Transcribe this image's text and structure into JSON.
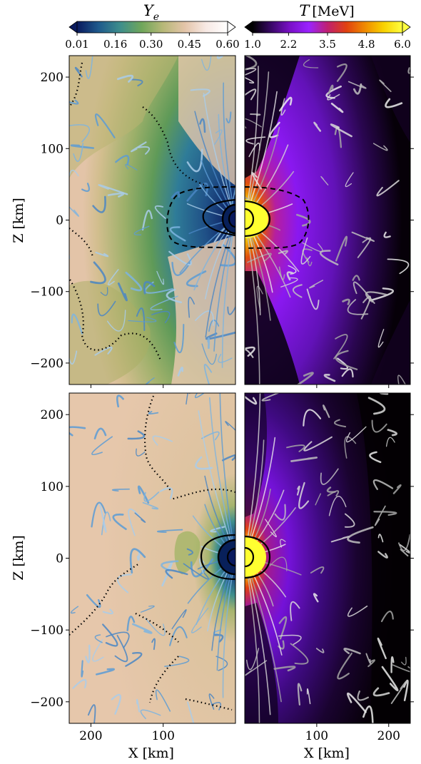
{
  "figure": {
    "colorbar_ye": {
      "label": "Y_e",
      "label_main": "Y",
      "label_sub": "e",
      "ticks": [
        "0.01",
        "0.16",
        "0.30",
        "0.45",
        "0.60"
      ],
      "tick_values": [
        0.01,
        0.16,
        0.3,
        0.45,
        0.6
      ],
      "range": [
        0.01,
        0.6
      ],
      "colormap_stops": [
        "#0a1a5e",
        "#1f5a8c",
        "#3e8e8c",
        "#6fa65a",
        "#b7b878",
        "#e3c4a8",
        "#f7e9e4",
        "#ffffff"
      ],
      "extend": "both"
    },
    "colorbar_t": {
      "label": "T [MeV]",
      "label_main": "T",
      "label_unit": "[MeV]",
      "ticks": [
        "1.0",
        "2.2",
        "3.5",
        "4.8",
        "6.0"
      ],
      "tick_values": [
        1.0,
        2.2,
        3.5,
        4.8,
        6.0
      ],
      "range": [
        1.0,
        6.0
      ],
      "colormap_stops": [
        "#000000",
        "#3a0868",
        "#7a10c8",
        "#9a22ff",
        "#c02070",
        "#e04010",
        "#f08a00",
        "#f8d200",
        "#ffff40"
      ],
      "extend": "both"
    },
    "panels": {
      "top_left": {
        "field": "Ye",
        "x_range": [
          230,
          0
        ],
        "y_range": [
          -230,
          230
        ]
      },
      "top_right": {
        "field": "T",
        "x_range": [
          0,
          230
        ],
        "y_range": [
          -230,
          230
        ]
      },
      "bottom_left": {
        "field": "Ye",
        "x_range": [
          230,
          0
        ],
        "y_range": [
          -230,
          230
        ]
      },
      "bottom_right": {
        "field": "T",
        "x_range": [
          0,
          230
        ],
        "y_range": [
          -230,
          230
        ]
      }
    },
    "y_axis": {
      "label": "Z [km]",
      "ticks": [
        "200",
        "100",
        "0",
        "−100",
        "−200"
      ],
      "tick_values": [
        200,
        100,
        0,
        -100,
        -200
      ]
    },
    "x_axis_left": {
      "label": "X [km]",
      "ticks": [
        "200",
        "100"
      ],
      "tick_values": [
        200,
        100
      ]
    },
    "x_axis_right": {
      "label": "X [km]",
      "ticks": [
        "100",
        "200"
      ],
      "tick_values": [
        100,
        200
      ]
    },
    "colors": {
      "ye_background": "#e3c4a8",
      "ye_mid": "#7aa24e",
      "ye_low": "#1f4f86",
      "streamline_blue": "#5b9bd5",
      "streamline_white": "#d9d9d9",
      "t_core": "#ffff30",
      "t_background": "#0c0010"
    }
  },
  "chart_data": [
    {
      "type": "heatmap",
      "title": "",
      "field": "Y_e",
      "xlabel": "X [km]",
      "ylabel": "Z [km]",
      "xlim": [
        230,
        0
      ],
      "ylim": [
        -230,
        230
      ],
      "clim": [
        0.01,
        0.6
      ],
      "colorbar_ticks": [
        0.01,
        0.16,
        0.3,
        0.45,
        0.6
      ]
    },
    {
      "type": "heatmap",
      "title": "",
      "field": "T [MeV]",
      "xlabel": "X [km]",
      "ylabel": "Z [km]",
      "xlim": [
        0,
        230
      ],
      "ylim": [
        -230,
        230
      ],
      "clim": [
        1.0,
        6.0
      ],
      "colorbar_ticks": [
        1.0,
        2.2,
        3.5,
        4.8,
        6.0
      ]
    }
  ]
}
